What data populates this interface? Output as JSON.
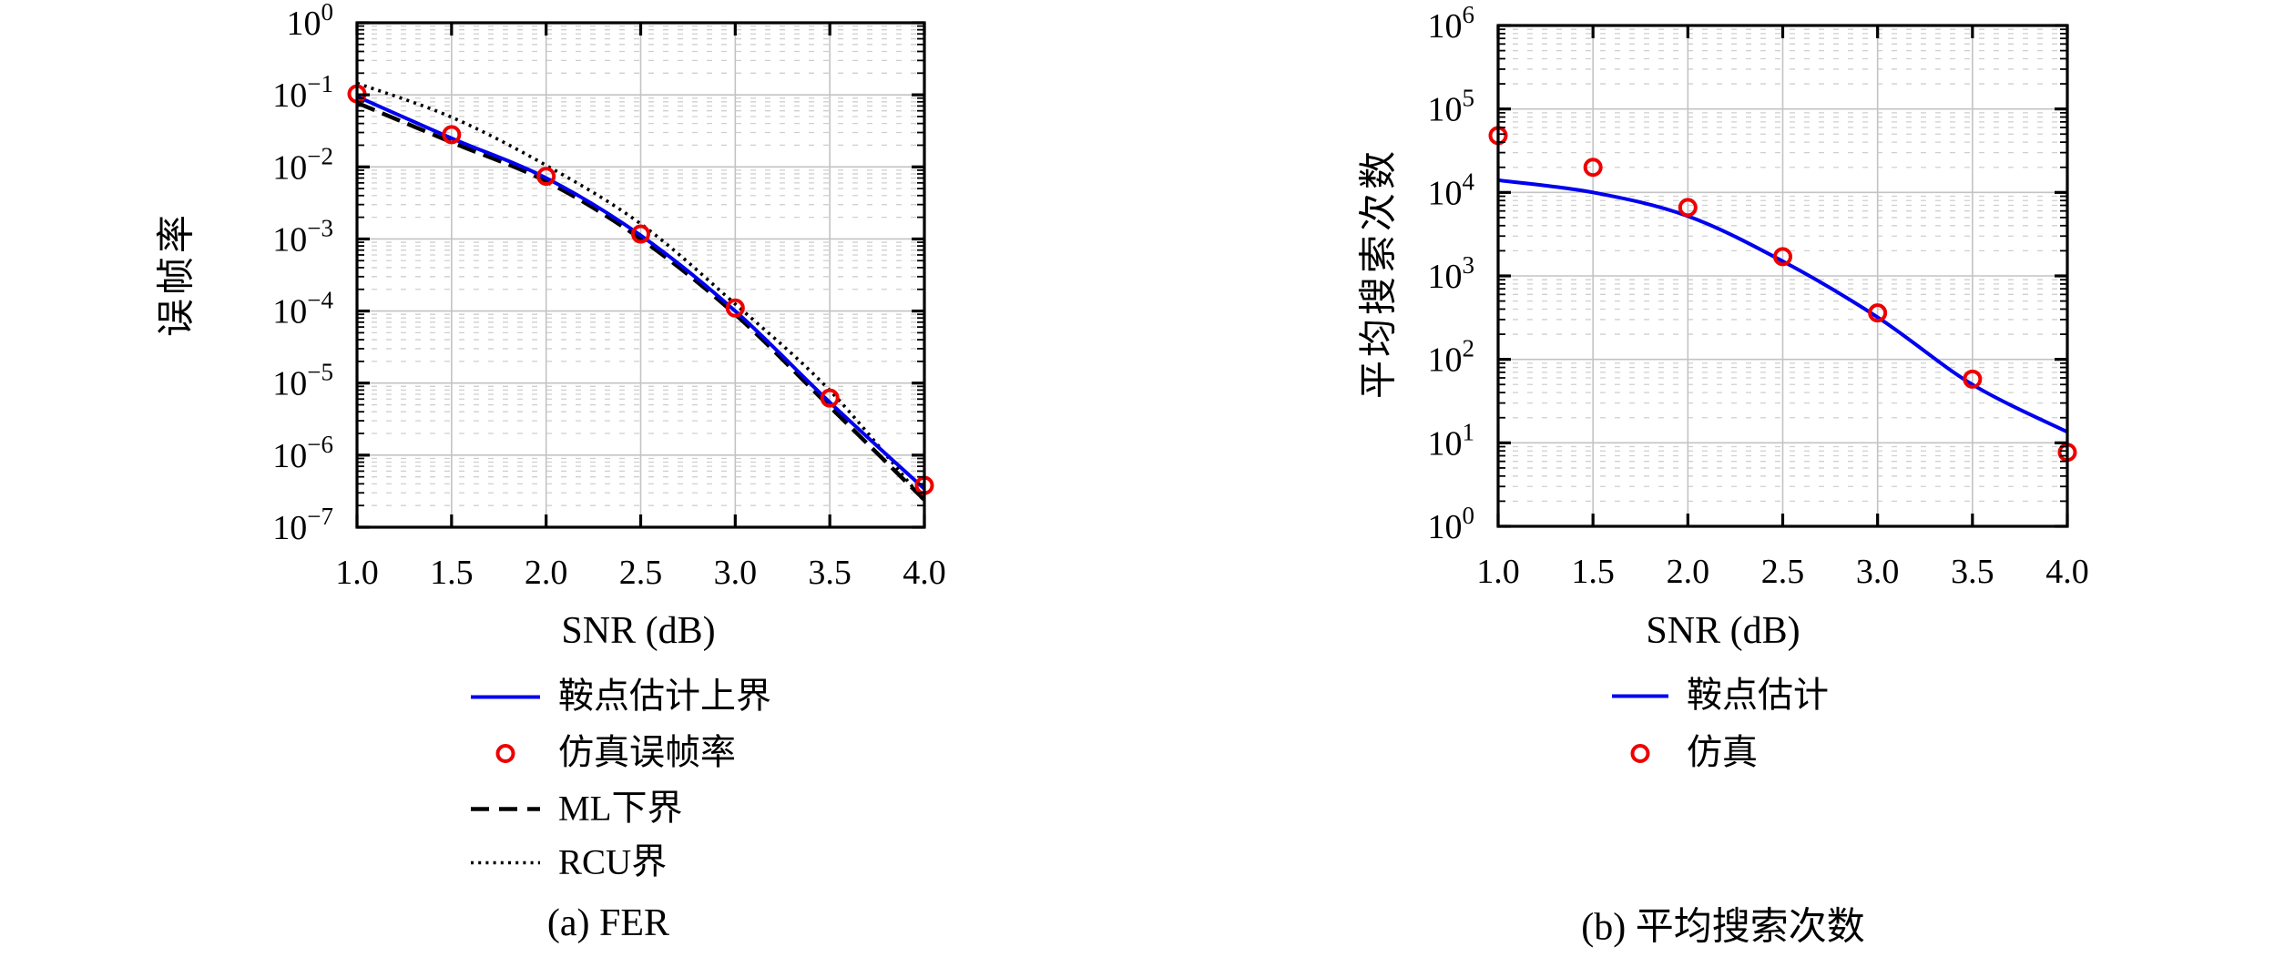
{
  "figure": {
    "background": "#ffffff",
    "accent_blue": "#0000ee",
    "accent_red": "#ee0000",
    "captions": {
      "a": "(a) FER",
      "b": "(b) 平均搜索次数"
    }
  },
  "chart_data": [
    {
      "type": "line",
      "title": "(a) FER",
      "xlabel": "SNR (dB)",
      "ylabel": "误帧率",
      "xlim": [
        1.0,
        4.0
      ],
      "x_ticks": [
        1.0,
        1.5,
        2.0,
        2.5,
        3.0,
        3.5,
        4.0
      ],
      "x_tick_labels": [
        "1.0",
        "1.5",
        "2.0",
        "2.5",
        "3.0",
        "3.5",
        "4.0"
      ],
      "y_scale": "log",
      "y_exponent_ticks": [
        0,
        -1,
        -2,
        -3,
        -4,
        -5,
        -6,
        -7
      ],
      "ylim": [
        1e-07,
        1
      ],
      "grid": {
        "major": true,
        "minor_horizontal_dashed": true
      },
      "legend_position": "below",
      "series": [
        {
          "name": "鞍点估计上界",
          "type": "line",
          "style": "solid",
          "color": "#0000ee",
          "x": [
            1.0,
            1.5,
            2.0,
            2.5,
            3.0,
            3.5,
            4.0
          ],
          "y": [
            0.095,
            0.025,
            0.007,
            0.00112,
            0.0001,
            5.4e-06,
            3.4e-07
          ]
        },
        {
          "name": "仿真误帧率",
          "type": "scatter",
          "marker": "circle",
          "color": "#ee0000",
          "x": [
            1.0,
            1.5,
            2.0,
            2.5,
            3.0,
            3.5,
            4.0
          ],
          "y": [
            0.103,
            0.028,
            0.0074,
            0.00117,
            0.00011,
            6.2e-06,
            3.8e-07
          ]
        },
        {
          "name": "ML下界",
          "type": "line",
          "style": "dashed",
          "color": "#000000",
          "x": [
            1.0,
            1.5,
            2.0,
            2.5,
            3.0,
            3.5,
            4.0
          ],
          "y": [
            0.0775,
            0.022,
            0.0063,
            0.001,
            9e-05,
            4.7e-06,
            2.4e-07
          ]
        },
        {
          "name": "RCU界",
          "type": "line",
          "style": "dotted",
          "color": "#000000",
          "x": [
            1.0,
            1.5,
            2.0,
            2.5,
            3.0,
            3.5,
            4.0
          ],
          "y": [
            0.145,
            0.049,
            0.0105,
            0.00162,
            0.000125,
            7.9e-06,
            2.3e-07
          ]
        }
      ]
    },
    {
      "type": "line",
      "title": "(b) 平均搜索次数",
      "xlabel": "SNR (dB)",
      "ylabel": "平均搜索次数",
      "xlim": [
        1.0,
        4.0
      ],
      "x_ticks": [
        1.0,
        1.5,
        2.0,
        2.5,
        3.0,
        3.5,
        4.0
      ],
      "x_tick_labels": [
        "1.0",
        "1.5",
        "2.0",
        "2.5",
        "3.0",
        "3.5",
        "4.0"
      ],
      "y_scale": "log",
      "y_exponent_ticks": [
        6,
        5,
        4,
        3,
        2,
        1,
        0
      ],
      "ylim": [
        1,
        1000000
      ],
      "grid": {
        "major": true,
        "minor_horizontal_dashed": true
      },
      "legend_position": "below",
      "series": [
        {
          "name": "鞍点估计",
          "type": "line",
          "style": "solid",
          "color": "#0000ee",
          "x": [
            1.0,
            1.5,
            2.0,
            2.5,
            3.0,
            3.5,
            4.0
          ],
          "y": [
            14000,
            10000,
            5200,
            1500,
            320,
            50,
            13.5
          ]
        },
        {
          "name": "仿真",
          "type": "scatter",
          "marker": "circle",
          "color": "#ee0000",
          "x": [
            1.0,
            1.5,
            2.0,
            2.5,
            3.0,
            3.5,
            4.0
          ],
          "y": [
            48000,
            20000,
            6600,
            1700,
            360,
            58,
            7.7
          ]
        }
      ]
    }
  ]
}
